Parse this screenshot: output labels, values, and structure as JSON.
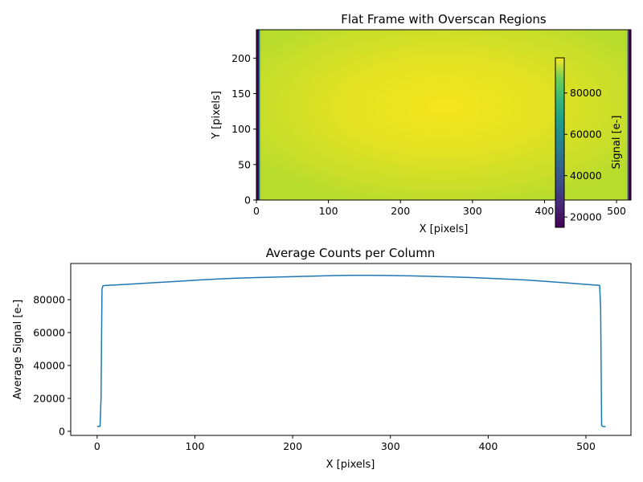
{
  "chart_data": [
    {
      "type": "heatmap",
      "title": "Flat Frame with Overscan Regions",
      "xlabel": "X [pixels]",
      "ylabel": "Y [pixels]",
      "xlim": [
        0,
        520
      ],
      "ylim": [
        0,
        240
      ],
      "xticks": [
        "0",
        "100",
        "200",
        "300",
        "400",
        "500"
      ],
      "yticks": [
        "0",
        "50",
        "100",
        "150",
        "200"
      ],
      "overscan_columns": {
        "left": [
          0,
          4
        ],
        "right": [
          516,
          520
        ],
        "signal": 3000
      },
      "illuminated_signal_range": [
        86000,
        97000
      ],
      "colormap": "viridis",
      "colorbar": {
        "label": "Signal [e-]",
        "range": [
          15000,
          97000
        ],
        "ticks": [
          "20000",
          "40000",
          "60000",
          "80000"
        ],
        "tick_values": [
          20000,
          40000,
          60000,
          80000
        ]
      }
    },
    {
      "type": "line",
      "title": "Average Counts per Column",
      "xlabel": "X [pixels]",
      "ylabel": "Average Signal [e-]",
      "xlim": [
        -27,
        546
      ],
      "ylim": [
        -2500,
        102000
      ],
      "xticks": [
        "0",
        "100",
        "200",
        "300",
        "400",
        "500"
      ],
      "yticks": [
        "0",
        "20000",
        "40000",
        "60000",
        "80000"
      ],
      "series": [
        {
          "color": "#1f77b4",
          "x": [
            0,
            3,
            4,
            4.5,
            5,
            6,
            10,
            20,
            40,
            60,
            80,
            100,
            120,
            140,
            160,
            180,
            200,
            220,
            240,
            260,
            280,
            300,
            320,
            340,
            360,
            380,
            400,
            420,
            440,
            460,
            480,
            500,
            514,
            515,
            515.5,
            516,
            517,
            520
          ],
          "y": [
            3000,
            3000,
            20000,
            55000,
            86500,
            88500,
            88700,
            89000,
            89700,
            90400,
            91100,
            91800,
            92500,
            93000,
            93400,
            93700,
            94000,
            94300,
            94600,
            94800,
            94800,
            94700,
            94500,
            94200,
            93900,
            93500,
            93000,
            92500,
            91900,
            91100,
            90200,
            89300,
            88700,
            75000,
            40000,
            3500,
            3000,
            2800
          ]
        }
      ]
    }
  ]
}
